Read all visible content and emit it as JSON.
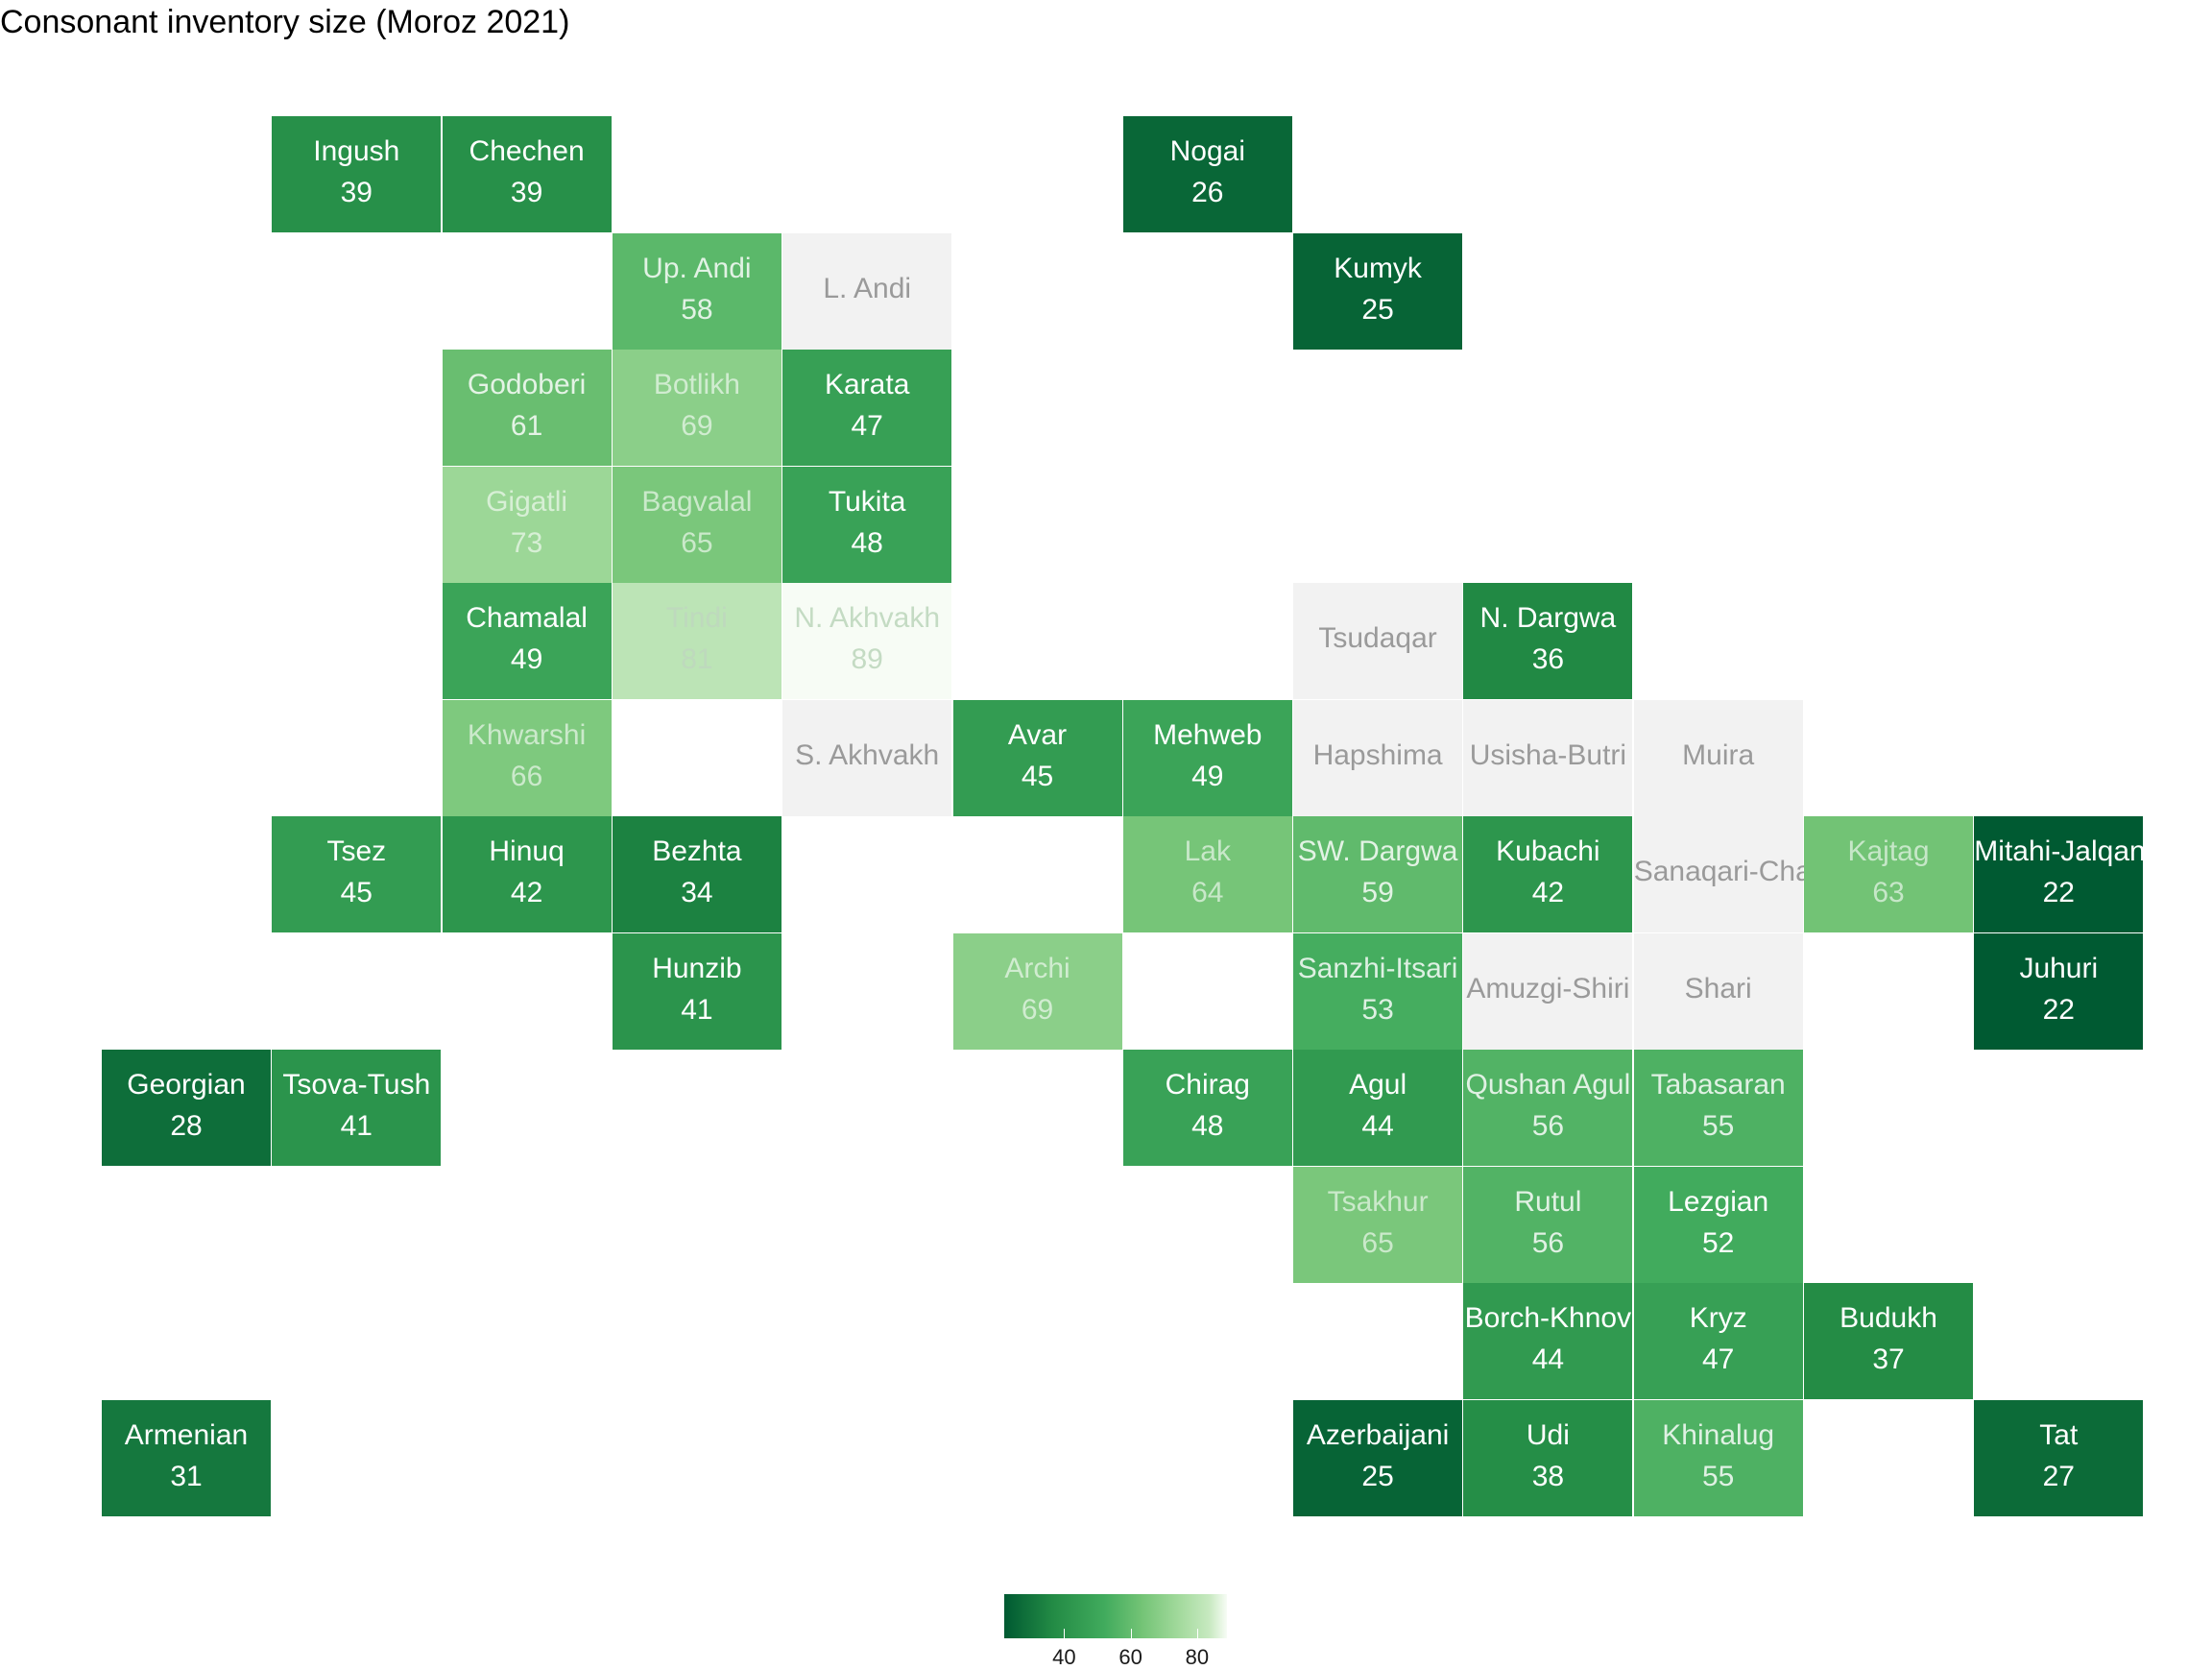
{
  "chart_data": {
    "type": "heatmap",
    "title": "Consonant inventory size (Moroz 2021)",
    "xlabel": "",
    "ylabel": "",
    "grid": false,
    "legend_placement": "bottom",
    "colorscale": {
      "low_value": 22,
      "high_value": 89,
      "low_color": "#005a32",
      "high_color": "#f7fcf5",
      "na_color": "#f2f2f2",
      "ticks": [
        40,
        60,
        80
      ]
    },
    "cells": [
      {
        "name": "Ingush",
        "value": 39,
        "col": 1,
        "row": 0
      },
      {
        "name": "Chechen",
        "value": 39,
        "col": 2,
        "row": 0
      },
      {
        "name": "Nogai",
        "value": 26,
        "col": 6,
        "row": 0
      },
      {
        "name": "Up. Andi",
        "value": 58,
        "col": 3,
        "row": 1
      },
      {
        "name": "L. Andi",
        "value": null,
        "col": 4,
        "row": 1
      },
      {
        "name": "Kumyk",
        "value": 25,
        "col": 7,
        "row": 1
      },
      {
        "name": "Godoberi",
        "value": 61,
        "col": 2,
        "row": 2
      },
      {
        "name": "Botlikh",
        "value": 69,
        "col": 3,
        "row": 2
      },
      {
        "name": "Karata",
        "value": 47,
        "col": 4,
        "row": 2
      },
      {
        "name": "Gigatli",
        "value": 73,
        "col": 2,
        "row": 3
      },
      {
        "name": "Bagvalal",
        "value": 65,
        "col": 3,
        "row": 3
      },
      {
        "name": "Tukita",
        "value": 48,
        "col": 4,
        "row": 3
      },
      {
        "name": "Chamalal",
        "value": 49,
        "col": 2,
        "row": 4
      },
      {
        "name": "Tindi",
        "value": 81,
        "col": 3,
        "row": 4
      },
      {
        "name": "N. Akhvakh",
        "value": 89,
        "col": 4,
        "row": 4
      },
      {
        "name": "Tsudaqar",
        "value": null,
        "col": 7,
        "row": 4
      },
      {
        "name": "N. Dargwa",
        "value": 36,
        "col": 8,
        "row": 4
      },
      {
        "name": "Khwarshi",
        "value": 66,
        "col": 2,
        "row": 5
      },
      {
        "name": "S. Akhvakh",
        "value": null,
        "col": 4,
        "row": 5
      },
      {
        "name": "Avar",
        "value": 45,
        "col": 5,
        "row": 5
      },
      {
        "name": "Mehweb",
        "value": 49,
        "col": 6,
        "row": 5
      },
      {
        "name": "Hapshima",
        "value": null,
        "col": 7,
        "row": 5
      },
      {
        "name": "Usisha-Butri",
        "value": null,
        "col": 8,
        "row": 5
      },
      {
        "name": "Muira",
        "value": null,
        "col": 9,
        "row": 5
      },
      {
        "name": "Tsez",
        "value": 45,
        "col": 1,
        "row": 6
      },
      {
        "name": "Hinuq",
        "value": 42,
        "col": 2,
        "row": 6
      },
      {
        "name": "Bezhta",
        "value": 34,
        "col": 3,
        "row": 6
      },
      {
        "name": "Lak",
        "value": 64,
        "col": 6,
        "row": 6
      },
      {
        "name": "SW. Dargwa",
        "value": 59,
        "col": 7,
        "row": 6
      },
      {
        "name": "Kubachi",
        "value": 42,
        "col": 8,
        "row": 6
      },
      {
        "name": "Sanaqari-Chah",
        "value": null,
        "col": 9,
        "row": 6
      },
      {
        "name": "Kajtag",
        "value": 63,
        "col": 10,
        "row": 6
      },
      {
        "name": "Mitahi-Jalqan",
        "value": 22,
        "col": 11,
        "row": 6
      },
      {
        "name": "Hunzib",
        "value": 41,
        "col": 3,
        "row": 7
      },
      {
        "name": "Archi",
        "value": 69,
        "col": 5,
        "row": 7
      },
      {
        "name": "Sanzhi-Itsari",
        "value": 53,
        "col": 7,
        "row": 7
      },
      {
        "name": "Amuzgi-Shiri",
        "value": null,
        "col": 8,
        "row": 7
      },
      {
        "name": "Shari",
        "value": null,
        "col": 9,
        "row": 7
      },
      {
        "name": "Juhuri",
        "value": 22,
        "col": 11,
        "row": 7
      },
      {
        "name": "Georgian",
        "value": 28,
        "col": 0,
        "row": 8
      },
      {
        "name": "Tsova-Tush",
        "value": 41,
        "col": 1,
        "row": 8
      },
      {
        "name": "Chirag",
        "value": 48,
        "col": 6,
        "row": 8
      },
      {
        "name": "Agul",
        "value": 44,
        "col": 7,
        "row": 8
      },
      {
        "name": "Qushan Agul",
        "value": 56,
        "col": 8,
        "row": 8
      },
      {
        "name": "Tabasaran",
        "value": 55,
        "col": 9,
        "row": 8
      },
      {
        "name": "Tsakhur",
        "value": 65,
        "col": 7,
        "row": 9
      },
      {
        "name": "Rutul",
        "value": 56,
        "col": 8,
        "row": 9
      },
      {
        "name": "Lezgian",
        "value": 52,
        "col": 9,
        "row": 9
      },
      {
        "name": "Borch-Khnov",
        "value": 44,
        "col": 8,
        "row": 10
      },
      {
        "name": "Kryz",
        "value": 47,
        "col": 9,
        "row": 10
      },
      {
        "name": "Budukh",
        "value": 37,
        "col": 10,
        "row": 10
      },
      {
        "name": "Armenian",
        "value": 31,
        "col": 0,
        "row": 11
      },
      {
        "name": "Azerbaijani",
        "value": 25,
        "col": 7,
        "row": 11
      },
      {
        "name": "Udi",
        "value": 38,
        "col": 8,
        "row": 11
      },
      {
        "name": "Khinalug",
        "value": 55,
        "col": 9,
        "row": 11
      },
      {
        "name": "Tat",
        "value": 27,
        "col": 11,
        "row": 11
      }
    ]
  }
}
